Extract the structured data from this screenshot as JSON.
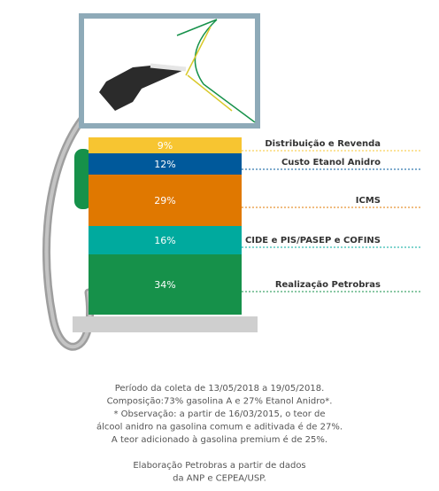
{
  "chart_data": {
    "type": "bar",
    "stacked": true,
    "categories": [
      "Distribuição e Revenda",
      "Custo Etanol Anidro",
      "ICMS",
      "CIDE e PIS/PASEP e COFINS",
      "Realização Petrobras"
    ],
    "values": [
      9,
      12,
      29,
      16,
      34
    ],
    "value_labels": [
      "9%",
      "12%",
      "29%",
      "16%",
      "34%"
    ],
    "colors": [
      "#f7c531",
      "#00599b",
      "#e07800",
      "#00aa9e",
      "#16914a"
    ],
    "notes": [
      "Período da coleta de 13/05/2018 a 19/05/2018.",
      "Composição:73% gasolina A e 27% Etanol Anidro*.",
      "*  Observação: a partir de 16/03/2015, o teor de",
      "álcool anidro na gasolina comum e aditivada é de 27%.",
      "A teor adicionado à gasolina premium é de 25%.",
      "",
      "Elaboração Petrobras a partir de dados",
      "da ANP e CEPEA/USP."
    ]
  }
}
